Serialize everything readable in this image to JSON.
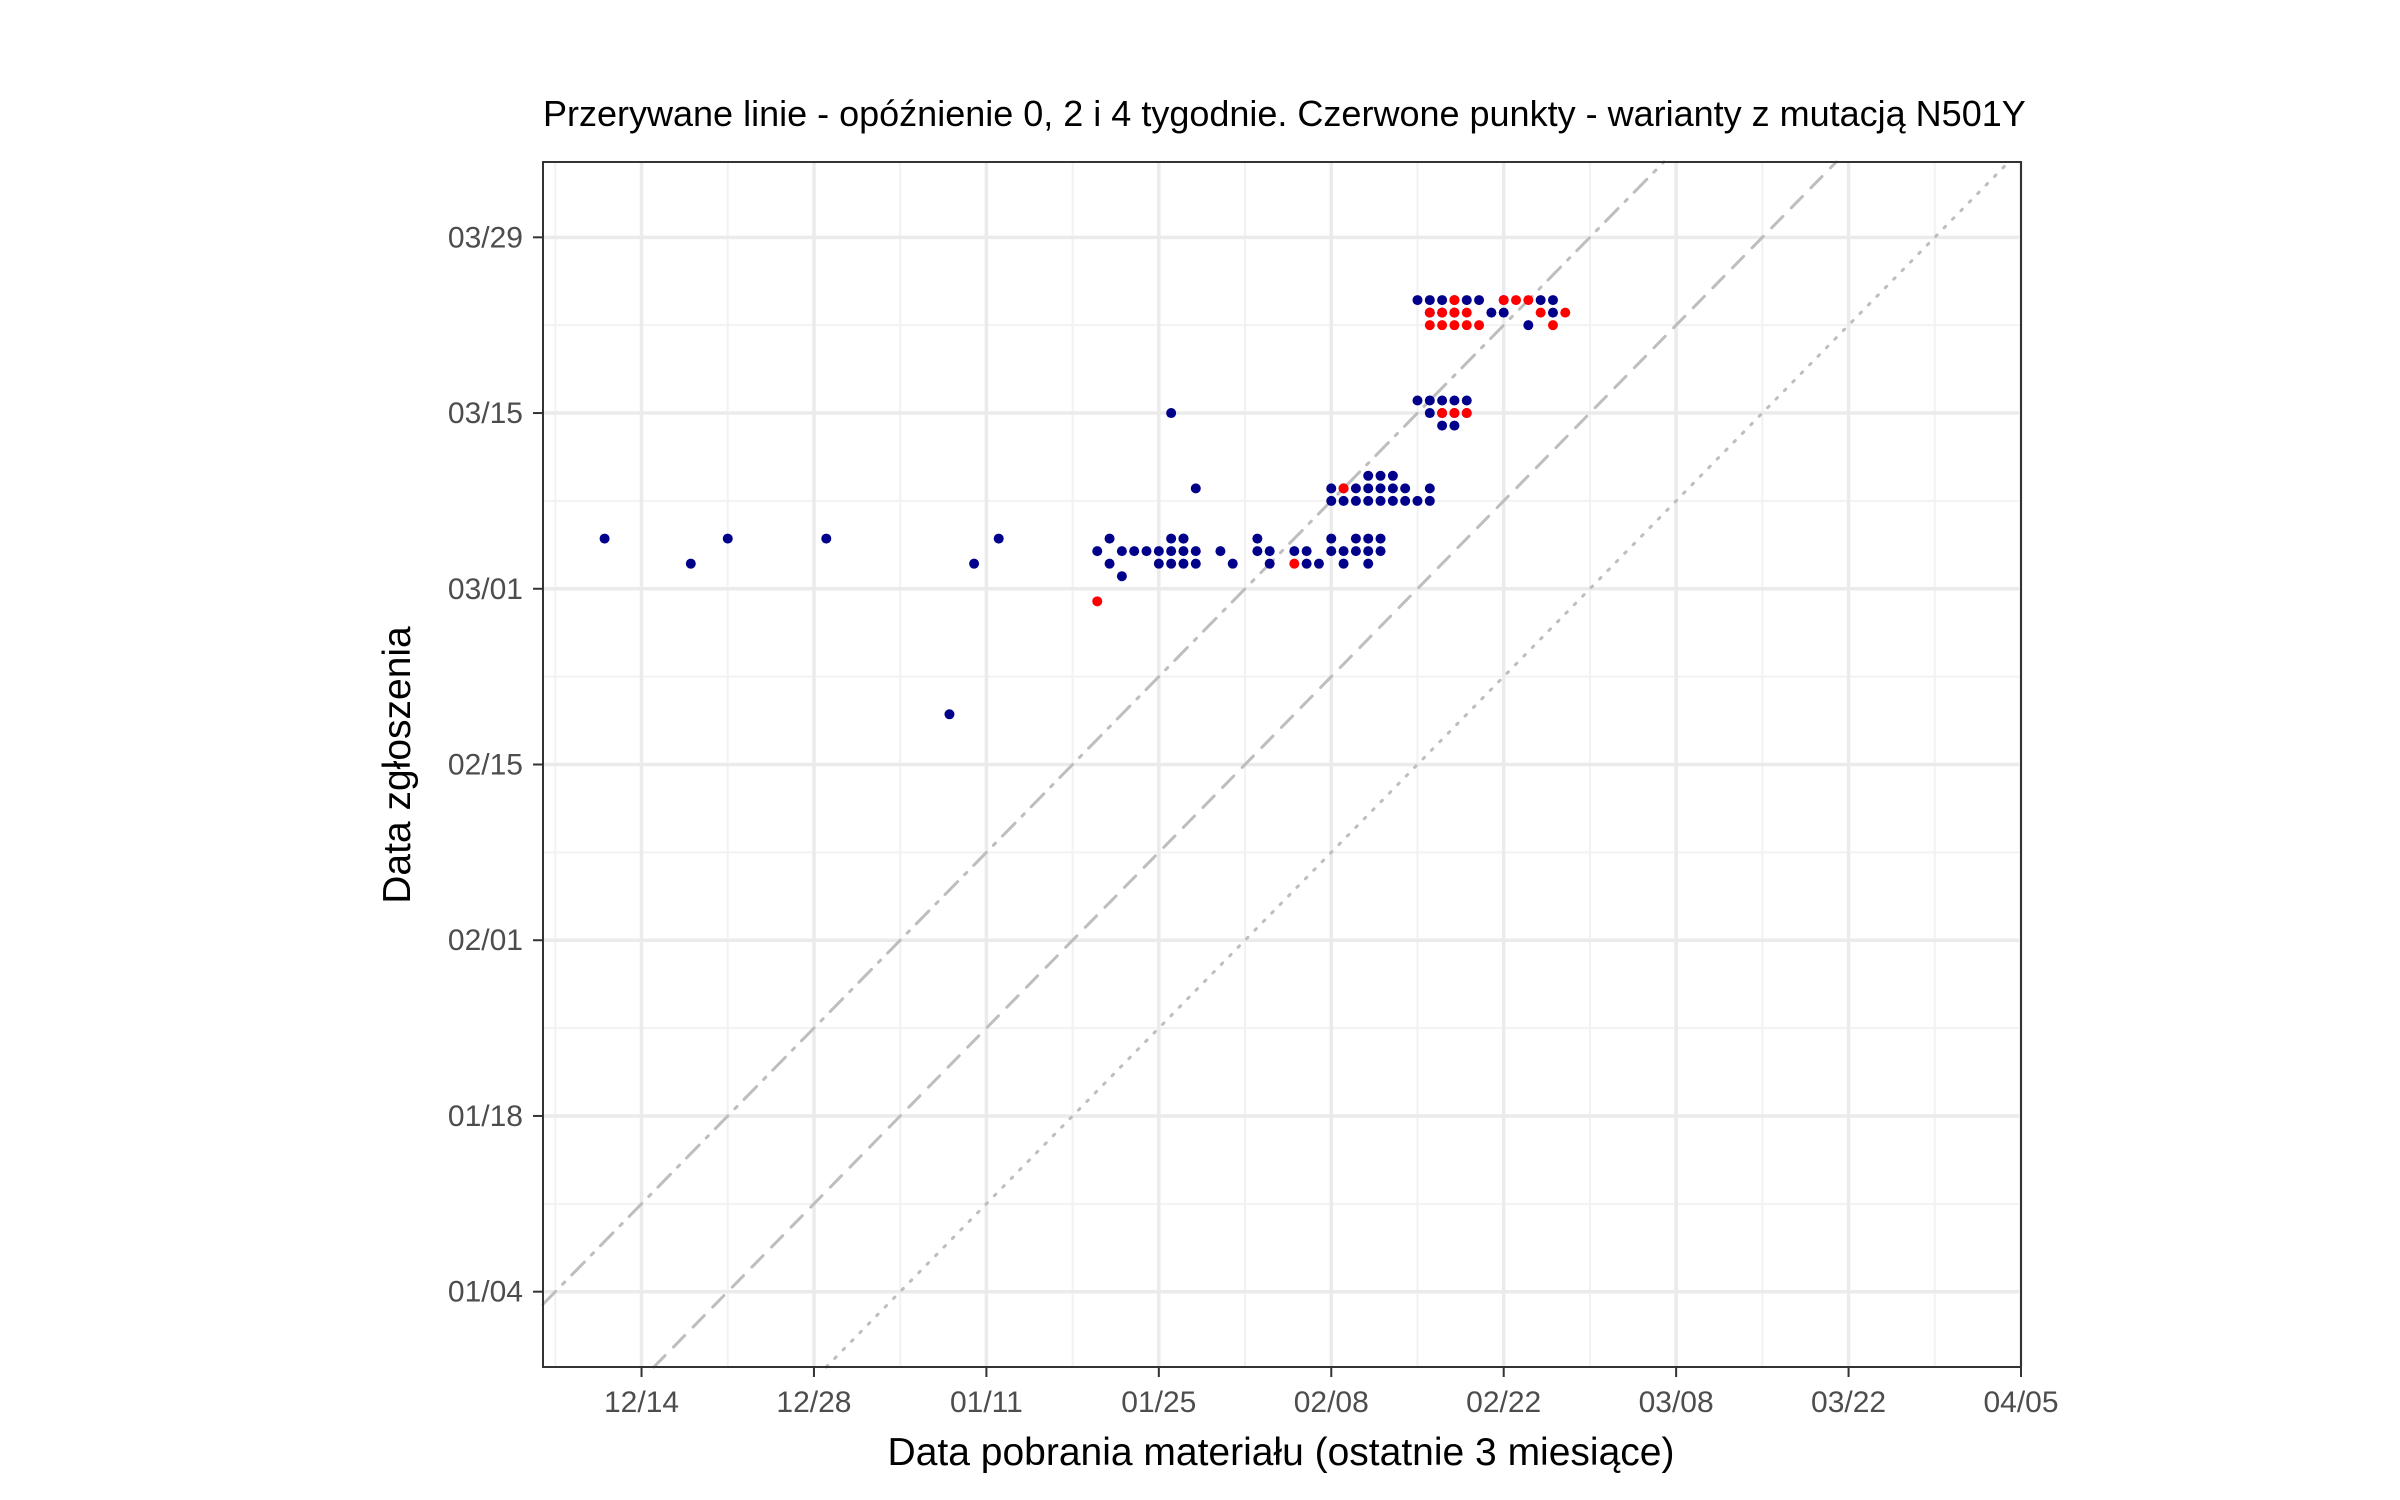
{
  "chart_data": {
    "type": "scatter",
    "title": "Przerywane linie - opóźnienie 0, 2 i 4 tygodnie. Czerwone punkty - warianty z mutacją N501Y",
    "xlabel": "Data pobrania materiału (ostatnie 3 miesiące)",
    "ylabel": "Data zgłoszenia",
    "xlim": [
      "2020-12-06",
      "2021-04-05"
    ],
    "ylim": [
      "2020-12-29",
      "2021-04-04"
    ],
    "x_ticks": [
      "12/14",
      "12/28",
      "01/11",
      "01/25",
      "02/08",
      "02/22",
      "03/08",
      "03/22",
      "04/05"
    ],
    "x_tick_dates": [
      "2020-12-14",
      "2020-12-28",
      "2021-01-11",
      "2021-01-25",
      "2021-02-08",
      "2021-02-22",
      "2021-03-08",
      "2021-03-22",
      "2021-04-05"
    ],
    "y_ticks": [
      "01/04",
      "01/18",
      "02/01",
      "02/15",
      "03/01",
      "03/15",
      "03/29"
    ],
    "y_tick_dates": [
      "2021-01-04",
      "2021-01-18",
      "2021-02-01",
      "2021-02-15",
      "2021-03-01",
      "2021-03-15",
      "2021-03-29"
    ],
    "grid": true,
    "reference_lines": [
      {
        "delay_weeks": 0,
        "style": "dotted"
      },
      {
        "delay_weeks": 2,
        "style": "dashed"
      },
      {
        "delay_weeks": 4,
        "style": "dashdot"
      }
    ],
    "colors": {
      "other": "#00008b",
      "n501y": "#ff0000",
      "reference": "#bebebe"
    },
    "series": [
      {
        "color": "#00008b",
        "points": [
          [
            "2020-12-11",
            "2021-03-05"
          ],
          [
            "2020-12-18",
            "2021-03-03"
          ],
          [
            "2020-12-21",
            "2021-03-05"
          ],
          [
            "2020-12-29",
            "2021-03-05"
          ],
          [
            "2021-01-08",
            "2021-02-19"
          ],
          [
            "2021-01-10",
            "2021-03-03"
          ],
          [
            "2021-01-12",
            "2021-03-05"
          ],
          [
            "2021-01-20",
            "2021-03-04"
          ],
          [
            "2021-01-21",
            "2021-03-05"
          ],
          [
            "2021-01-21",
            "2021-03-03"
          ],
          [
            "2021-01-22",
            "2021-03-04"
          ],
          [
            "2021-01-22",
            "2021-03-02"
          ],
          [
            "2021-01-23",
            "2021-03-04"
          ],
          [
            "2021-01-24",
            "2021-03-04"
          ],
          [
            "2021-01-25",
            "2021-03-03"
          ],
          [
            "2021-01-25",
            "2021-03-04"
          ],
          [
            "2021-01-26",
            "2021-03-03"
          ],
          [
            "2021-01-26",
            "2021-03-04"
          ],
          [
            "2021-01-27",
            "2021-03-03"
          ],
          [
            "2021-01-27",
            "2021-03-04"
          ],
          [
            "2021-01-27",
            "2021-03-05"
          ],
          [
            "2021-01-28",
            "2021-03-04"
          ],
          [
            "2021-01-28",
            "2021-03-03"
          ],
          [
            "2021-01-26",
            "2021-03-05"
          ],
          [
            "2021-01-27",
            "2021-03-05"
          ],
          [
            "2021-01-26",
            "2021-03-15"
          ],
          [
            "2021-01-28",
            "2021-03-09"
          ],
          [
            "2021-01-30",
            "2021-03-04"
          ],
          [
            "2021-01-31",
            "2021-03-03"
          ],
          [
            "2021-02-02",
            "2021-03-04"
          ],
          [
            "2021-02-02",
            "2021-03-05"
          ],
          [
            "2021-02-03",
            "2021-03-04"
          ],
          [
            "2021-02-03",
            "2021-03-03"
          ],
          [
            "2021-02-05",
            "2021-03-04"
          ],
          [
            "2021-02-06",
            "2021-03-03"
          ],
          [
            "2021-02-06",
            "2021-03-04"
          ],
          [
            "2021-02-07",
            "2021-03-03"
          ],
          [
            "2021-02-08",
            "2021-03-04"
          ],
          [
            "2021-02-08",
            "2021-03-05"
          ],
          [
            "2021-02-09",
            "2021-03-04"
          ],
          [
            "2021-02-09",
            "2021-03-03"
          ],
          [
            "2021-02-10",
            "2021-03-04"
          ],
          [
            "2021-02-10",
            "2021-03-05"
          ],
          [
            "2021-02-11",
            "2021-03-03"
          ],
          [
            "2021-02-11",
            "2021-03-04"
          ],
          [
            "2021-02-11",
            "2021-03-05"
          ],
          [
            "2021-02-12",
            "2021-03-04"
          ],
          [
            "2021-02-12",
            "2021-03-05"
          ],
          [
            "2021-02-08",
            "2021-03-09"
          ],
          [
            "2021-02-08",
            "2021-03-08"
          ],
          [
            "2021-02-09",
            "2021-03-09"
          ],
          [
            "2021-02-09",
            "2021-03-08"
          ],
          [
            "2021-02-10",
            "2021-03-09"
          ],
          [
            "2021-02-10",
            "2021-03-08"
          ],
          [
            "2021-02-11",
            "2021-03-09"
          ],
          [
            "2021-02-11",
            "2021-03-08"
          ],
          [
            "2021-02-12",
            "2021-03-09"
          ],
          [
            "2021-02-12",
            "2021-03-08"
          ],
          [
            "2021-02-13",
            "2021-03-09"
          ],
          [
            "2021-02-13",
            "2021-03-08"
          ],
          [
            "2021-02-14",
            "2021-03-08"
          ],
          [
            "2021-02-14",
            "2021-03-09"
          ],
          [
            "2021-02-15",
            "2021-03-08"
          ],
          [
            "2021-02-16",
            "2021-03-09"
          ],
          [
            "2021-02-16",
            "2021-03-08"
          ],
          [
            "2021-02-12",
            "2021-03-10"
          ],
          [
            "2021-02-11",
            "2021-03-10"
          ],
          [
            "2021-02-13",
            "2021-03-10"
          ],
          [
            "2021-02-15",
            "2021-03-16"
          ],
          [
            "2021-02-16",
            "2021-03-16"
          ],
          [
            "2021-02-16",
            "2021-03-15"
          ],
          [
            "2021-02-17",
            "2021-03-16"
          ],
          [
            "2021-02-17",
            "2021-03-15"
          ],
          [
            "2021-02-18",
            "2021-03-15"
          ],
          [
            "2021-02-18",
            "2021-03-16"
          ],
          [
            "2021-02-19",
            "2021-03-15"
          ],
          [
            "2021-02-19",
            "2021-03-16"
          ],
          [
            "2021-02-17",
            "2021-03-14"
          ],
          [
            "2021-02-18",
            "2021-03-14"
          ],
          [
            "2021-02-15",
            "2021-03-24"
          ],
          [
            "2021-02-16",
            "2021-03-23"
          ],
          [
            "2021-02-16",
            "2021-03-24"
          ],
          [
            "2021-02-17",
            "2021-03-24"
          ],
          [
            "2021-02-17",
            "2021-03-23"
          ],
          [
            "2021-02-18",
            "2021-03-24"
          ],
          [
            "2021-02-18",
            "2021-03-23"
          ],
          [
            "2021-02-19",
            "2021-03-24"
          ],
          [
            "2021-02-20",
            "2021-03-24"
          ],
          [
            "2021-02-21",
            "2021-03-23"
          ],
          [
            "2021-02-22",
            "2021-03-23"
          ],
          [
            "2021-02-22",
            "2021-03-24"
          ],
          [
            "2021-02-24",
            "2021-03-22"
          ],
          [
            "2021-02-25",
            "2021-03-24"
          ],
          [
            "2021-02-26",
            "2021-03-24"
          ],
          [
            "2021-02-26",
            "2021-03-23"
          ]
        ]
      },
      {
        "color": "#ff0000",
        "points": [
          [
            "2021-01-20",
            "2021-02-28"
          ],
          [
            "2021-02-05",
            "2021-03-03"
          ],
          [
            "2021-02-09",
            "2021-03-09"
          ],
          [
            "2021-02-17",
            "2021-03-15"
          ],
          [
            "2021-02-18",
            "2021-03-15"
          ],
          [
            "2021-02-19",
            "2021-03-15"
          ],
          [
            "2021-02-16",
            "2021-03-23"
          ],
          [
            "2021-02-16",
            "2021-03-22"
          ],
          [
            "2021-02-17",
            "2021-03-22"
          ],
          [
            "2021-02-17",
            "2021-03-23"
          ],
          [
            "2021-02-18",
            "2021-03-22"
          ],
          [
            "2021-02-18",
            "2021-03-23"
          ],
          [
            "2021-02-18",
            "2021-03-24"
          ],
          [
            "2021-02-19",
            "2021-03-22"
          ],
          [
            "2021-02-19",
            "2021-03-23"
          ],
          [
            "2021-02-20",
            "2021-03-22"
          ],
          [
            "2021-02-22",
            "2021-03-24"
          ],
          [
            "2021-02-23",
            "2021-03-24"
          ],
          [
            "2021-02-24",
            "2021-03-24"
          ],
          [
            "2021-02-25",
            "2021-03-23"
          ],
          [
            "2021-02-26",
            "2021-03-22"
          ],
          [
            "2021-02-27",
            "2021-03-23"
          ]
        ]
      }
    ]
  }
}
